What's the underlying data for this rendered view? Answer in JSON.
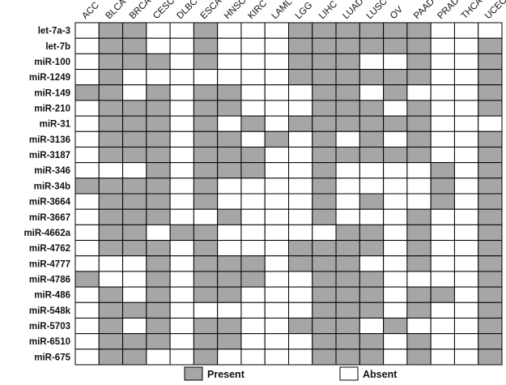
{
  "chart_data": {
    "type": "heatmap",
    "title": "",
    "xlabel": "",
    "ylabel": "",
    "columns": [
      "ACC",
      "BLCA",
      "BRCA",
      "CESC",
      "DLBC",
      "ESCA",
      "HNSC",
      "KIRC",
      "LAML",
      "LGG",
      "LIHC",
      "LUAD",
      "LUSC",
      "OV",
      "PAAD",
      "PRAD",
      "THCA",
      "UCEC"
    ],
    "rows": [
      "let-7a-3",
      "let-7b",
      "miR-100",
      "miR-1249",
      "miR-149",
      "miR-210",
      "miR-31",
      "miR-3136",
      "miR-3187",
      "miR-346",
      "miR-34b",
      "miR-3664",
      "miR-3667",
      "miR-4662a",
      "miR-4762",
      "miR-4777",
      "miR-4786",
      "miR-486",
      "miR-548k",
      "miR-5703",
      "miR-6510",
      "miR-675"
    ],
    "values": [
      [
        0,
        1,
        1,
        0,
        0,
        1,
        0,
        0,
        0,
        1,
        1,
        1,
        1,
        1,
        1,
        0,
        0,
        0
      ],
      [
        0,
        1,
        1,
        0,
        0,
        1,
        0,
        0,
        0,
        1,
        1,
        1,
        1,
        1,
        1,
        0,
        0,
        1
      ],
      [
        0,
        1,
        1,
        1,
        0,
        1,
        0,
        0,
        0,
        1,
        1,
        1,
        0,
        0,
        1,
        0,
        0,
        1
      ],
      [
        0,
        1,
        0,
        0,
        0,
        0,
        0,
        0,
        0,
        1,
        1,
        1,
        1,
        1,
        1,
        0,
        0,
        1
      ],
      [
        1,
        1,
        0,
        1,
        0,
        1,
        1,
        0,
        0,
        0,
        1,
        1,
        0,
        1,
        0,
        0,
        0,
        1
      ],
      [
        0,
        1,
        1,
        1,
        0,
        1,
        1,
        0,
        0,
        0,
        1,
        1,
        1,
        0,
        1,
        0,
        0,
        1
      ],
      [
        0,
        1,
        1,
        1,
        0,
        1,
        0,
        1,
        0,
        1,
        1,
        1,
        1,
        1,
        1,
        0,
        0,
        0
      ],
      [
        0,
        1,
        1,
        1,
        0,
        1,
        1,
        0,
        1,
        0,
        1,
        0,
        1,
        0,
        1,
        0,
        0,
        1
      ],
      [
        0,
        1,
        1,
        1,
        0,
        1,
        1,
        1,
        0,
        0,
        1,
        1,
        1,
        1,
        1,
        0,
        0,
        1
      ],
      [
        0,
        0,
        0,
        1,
        0,
        1,
        1,
        1,
        0,
        0,
        1,
        0,
        0,
        0,
        0,
        1,
        0,
        1
      ],
      [
        1,
        1,
        1,
        1,
        0,
        1,
        0,
        0,
        0,
        0,
        1,
        0,
        0,
        0,
        0,
        1,
        0,
        1
      ],
      [
        0,
        1,
        1,
        1,
        0,
        1,
        0,
        0,
        0,
        0,
        1,
        0,
        1,
        0,
        0,
        1,
        0,
        1
      ],
      [
        0,
        1,
        1,
        1,
        0,
        0,
        1,
        0,
        0,
        0,
        1,
        0,
        0,
        0,
        1,
        0,
        0,
        1
      ],
      [
        0,
        1,
        1,
        0,
        1,
        1,
        0,
        0,
        0,
        0,
        0,
        1,
        1,
        0,
        1,
        0,
        0,
        1
      ],
      [
        0,
        1,
        1,
        1,
        0,
        1,
        0,
        0,
        0,
        1,
        1,
        1,
        1,
        0,
        1,
        0,
        0,
        1
      ],
      [
        0,
        0,
        0,
        1,
        0,
        1,
        1,
        1,
        0,
        1,
        1,
        1,
        0,
        0,
        1,
        0,
        0,
        1
      ],
      [
        1,
        0,
        0,
        1,
        0,
        1,
        1,
        1,
        0,
        0,
        1,
        1,
        1,
        0,
        0,
        0,
        0,
        1
      ],
      [
        0,
        1,
        0,
        1,
        0,
        1,
        1,
        0,
        0,
        0,
        1,
        1,
        1,
        0,
        1,
        1,
        0,
        1
      ],
      [
        0,
        1,
        1,
        1,
        0,
        0,
        0,
        0,
        0,
        0,
        1,
        1,
        1,
        0,
        1,
        0,
        0,
        1
      ],
      [
        0,
        1,
        0,
        1,
        0,
        1,
        1,
        0,
        0,
        1,
        1,
        1,
        0,
        1,
        0,
        0,
        0,
        1
      ],
      [
        0,
        1,
        1,
        1,
        0,
        1,
        1,
        0,
        0,
        0,
        1,
        1,
        1,
        0,
        1,
        0,
        0,
        1
      ],
      [
        0,
        1,
        1,
        0,
        0,
        1,
        0,
        0,
        0,
        0,
        1,
        1,
        1,
        0,
        1,
        0,
        0,
        1
      ]
    ],
    "legend": [
      {
        "label": "Present",
        "value": 1,
        "color": "#a6a6a6"
      },
      {
        "label": "Absent",
        "value": 0,
        "color": "#ffffff"
      }
    ],
    "legend_position": "bottom",
    "grid": true
  }
}
